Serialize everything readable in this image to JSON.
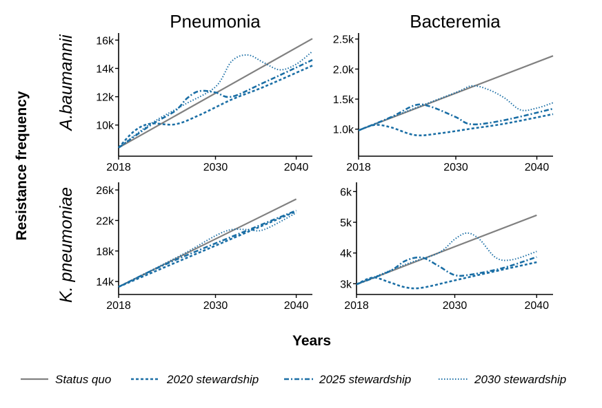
{
  "figure": {
    "xlabel": "Years",
    "ylabel": "Resistance frequency",
    "columns": [
      "Pneumonia",
      "Bacteremia"
    ],
    "rows": [
      "A.baumannii",
      "K. pneumoniae"
    ]
  },
  "legend": [
    {
      "label": "Status quo",
      "color": "#808080",
      "style": "solid"
    },
    {
      "label": "2020 stewardship",
      "color": "#1a6ea5",
      "style": "dashed"
    },
    {
      "label": "2025 stewardship",
      "color": "#1a6ea5",
      "style": "dashdot"
    },
    {
      "label": "2030 stewardship",
      "color": "#1a6ea5",
      "style": "dotted"
    }
  ],
  "chart_data": [
    {
      "type": "line",
      "panel": "A.baumannii / Pneumonia",
      "xlim": [
        2018,
        2042
      ],
      "ylim": [
        7800,
        16500
      ],
      "xticks": [
        2018,
        2030,
        2040
      ],
      "xtick_labels": [
        "2018",
        "2030",
        "2040"
      ],
      "yticks": [
        10000,
        12000,
        14000,
        16000
      ],
      "ytick_labels": [
        "10k",
        "12k",
        "14k",
        "16k"
      ],
      "series": [
        {
          "name": "Status quo",
          "x": [
            2018,
            2042
          ],
          "y": [
            8400,
            16100
          ]
        },
        {
          "name": "2020 stewardship",
          "x": [
            2018,
            2020,
            2022,
            2025,
            2028,
            2032,
            2036,
            2042
          ],
          "y": [
            8400,
            9600,
            10100,
            10050,
            10700,
            11800,
            12700,
            14200
          ]
        },
        {
          "name": "2025 stewardship",
          "x": [
            2018,
            2022,
            2025,
            2026.5,
            2028,
            2030,
            2032,
            2036,
            2042
          ],
          "y": [
            8400,
            10000,
            11000,
            11900,
            12400,
            12300,
            12000,
            13000,
            14600
          ]
        },
        {
          "name": "2030 stewardship",
          "x": [
            2018,
            2022,
            2026,
            2030,
            2032,
            2034,
            2036,
            2038,
            2040,
            2042
          ],
          "y": [
            8400,
            10100,
            11400,
            12700,
            14500,
            14950,
            14400,
            13900,
            14300,
            15200
          ]
        }
      ]
    },
    {
      "type": "line",
      "panel": "A.baumannii / Bacteremia",
      "xlim": [
        2018,
        2042
      ],
      "ylim": [
        550,
        2600
      ],
      "xticks": [
        2018,
        2030,
        2040
      ],
      "xtick_labels": [
        "2018",
        "2030",
        "2040"
      ],
      "yticks": [
        1000,
        1500,
        2000,
        2500
      ],
      "ytick_labels": [
        "1.0k",
        "1.5k",
        "2.0k",
        "2.5k"
      ],
      "series": [
        {
          "name": "Status quo",
          "x": [
            2018,
            2042
          ],
          "y": [
            980,
            2220
          ]
        },
        {
          "name": "2020 stewardship",
          "x": [
            2018,
            2020,
            2022,
            2025,
            2028,
            2032,
            2036,
            2042
          ],
          "y": [
            980,
            1070,
            1030,
            900,
            930,
            1010,
            1090,
            1250
          ]
        },
        {
          "name": "2025 stewardship",
          "x": [
            2018,
            2022,
            2025,
            2027,
            2030,
            2032,
            2036,
            2042
          ],
          "y": [
            980,
            1200,
            1400,
            1370,
            1200,
            1080,
            1150,
            1340
          ]
        },
        {
          "name": "2030 stewardship",
          "x": [
            2018,
            2024,
            2030,
            2032,
            2034,
            2036,
            2038,
            2040,
            2042
          ],
          "y": [
            980,
            1300,
            1610,
            1720,
            1660,
            1520,
            1320,
            1350,
            1440
          ]
        }
      ]
    },
    {
      "type": "line",
      "panel": "K. pneumoniae / Pneumonia",
      "xlim": [
        2018,
        2042
      ],
      "ylim": [
        12300,
        27000
      ],
      "xticks": [
        2018,
        2030,
        2040
      ],
      "xtick_labels": [
        "2018",
        "2030",
        "2040"
      ],
      "yticks": [
        14000,
        18000,
        22000,
        26000
      ],
      "ytick_labels": [
        "14k",
        "18k",
        "22k",
        "26k"
      ],
      "series": [
        {
          "name": "Status quo",
          "x": [
            2018,
            2040
          ],
          "y": [
            13300,
            24800
          ]
        },
        {
          "name": "2020 stewardship",
          "x": [
            2018,
            2040
          ],
          "y": [
            13300,
            23200
          ]
        },
        {
          "name": "2025 stewardship",
          "x": [
            2018,
            2025,
            2040
          ],
          "y": [
            13300,
            16800,
            23300
          ]
        },
        {
          "name": "2030 stewardship",
          "x": [
            2018,
            2026,
            2030,
            2032,
            2034,
            2036,
            2040
          ],
          "y": [
            13300,
            17600,
            20000,
            20800,
            20800,
            20800,
            23000
          ]
        }
      ]
    },
    {
      "type": "line",
      "panel": "K. pneumoniae / Bacteremia",
      "xlim": [
        2018,
        2042
      ],
      "ylim": [
        2650,
        6300
      ],
      "xticks": [
        2018,
        2030,
        2040
      ],
      "xtick_labels": [
        "2018",
        "2030",
        "2040"
      ],
      "yticks": [
        3000,
        4000,
        5000,
        6000
      ],
      "ytick_labels": [
        "3k",
        "4k",
        "5k",
        "6k"
      ],
      "series": [
        {
          "name": "Status quo",
          "x": [
            2018,
            2040
          ],
          "y": [
            2980,
            5230
          ]
        },
        {
          "name": "2020 stewardship",
          "x": [
            2018,
            2020,
            2022,
            2024,
            2026,
            2030,
            2034,
            2040
          ],
          "y": [
            2980,
            3200,
            3050,
            2880,
            2870,
            3110,
            3350,
            3700
          ]
        },
        {
          "name": "2025 stewardship",
          "x": [
            2018,
            2022,
            2024,
            2026,
            2028,
            2030,
            2032,
            2036,
            2040
          ],
          "y": [
            2980,
            3400,
            3750,
            3850,
            3580,
            3280,
            3300,
            3520,
            3870
          ]
        },
        {
          "name": "2030 stewardship",
          "x": [
            2018,
            2024,
            2028,
            2030,
            2031.5,
            2033,
            2035,
            2037,
            2040
          ],
          "y": [
            2980,
            3630,
            4000,
            4450,
            4650,
            4450,
            3850,
            3780,
            4050
          ]
        }
      ]
    }
  ]
}
